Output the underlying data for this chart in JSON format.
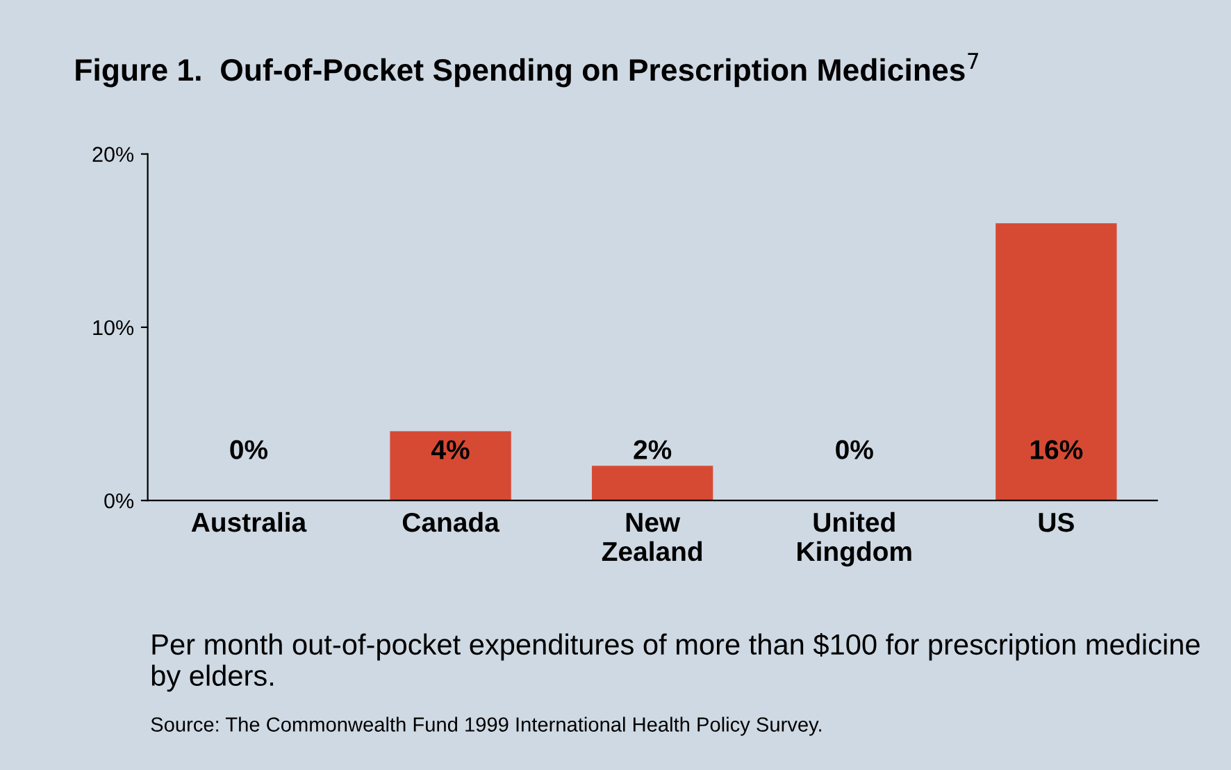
{
  "chart_data": {
    "type": "bar",
    "title": "Figure 1.  Ouf-of-Pocket Spending on Prescription Medicines$^{7}$",
    "categories": [
      "Australia",
      "Canada",
      "New\nZealand",
      "United\nKingdom",
      "US"
    ],
    "values": [
      0,
      4,
      2,
      0,
      16
    ],
    "value_labels": [
      "0%",
      "4%",
      "2%",
      "0%",
      "16%"
    ],
    "color": "#d64a34",
    "ylim": [
      0,
      20
    ],
    "yticks": [
      {
        "value": 0,
        "label": "0%"
      },
      {
        "value": 10,
        "label": "10%"
      },
      {
        "value": 20,
        "label": "20%"
      }
    ],
    "annotations": [
      "Per month out-of-pocket expenditures of more than $100 for prescription medicine by elders.",
      "Source: The Commonwealth Fund 1999 International Health Policy Survey."
    ]
  }
}
